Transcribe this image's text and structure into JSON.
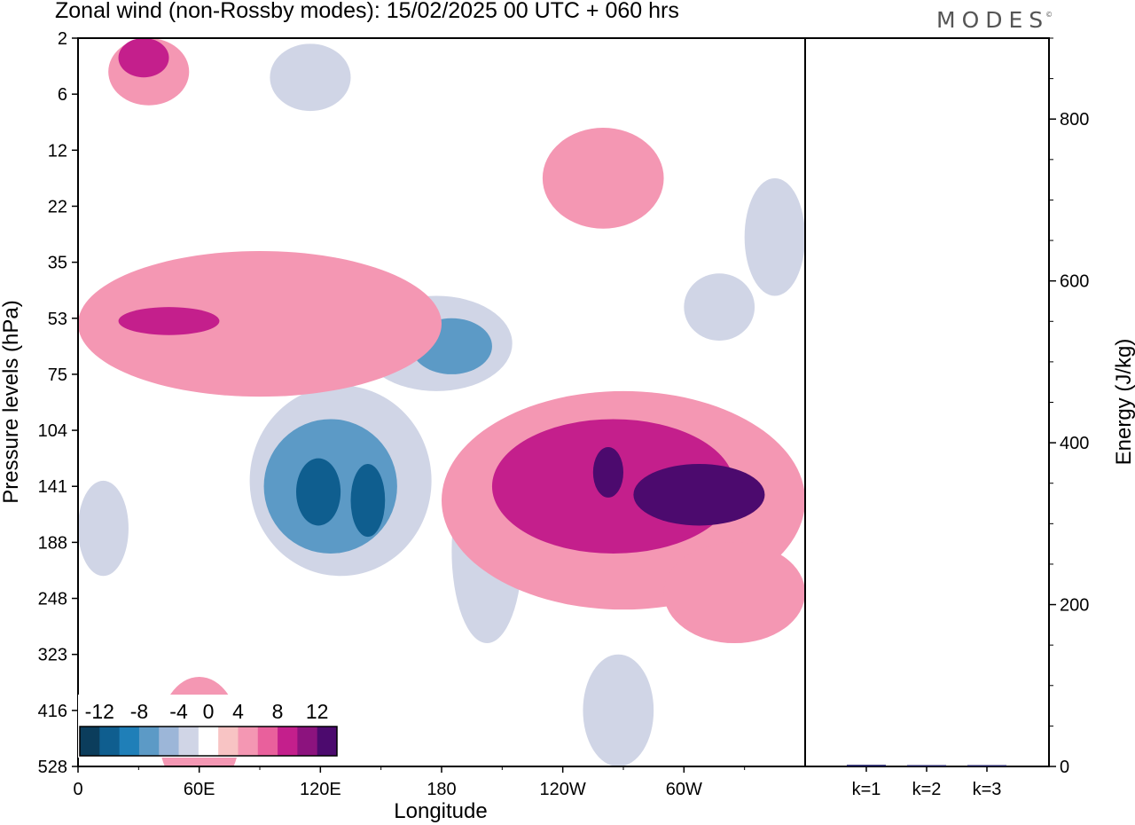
{
  "header": {
    "title": "Zonal wind (non-Rossby modes):  15/02/2025  00 UTC  + 060 hrs",
    "logo": "MODES",
    "logo_mark": "©"
  },
  "chart_data": [
    {
      "type": "heatmap",
      "xlabel": "Longitude",
      "ylabel": "Pressure levels (hPa)",
      "x_ticks": [
        "0",
        "60E",
        "120E",
        "180",
        "120W",
        "60W"
      ],
      "x_tick_values": [
        0,
        60,
        120,
        180,
        240,
        300
      ],
      "xlim": [
        0,
        360
      ],
      "y_ticks": [
        "2",
        "6",
        "12",
        "22",
        "35",
        "53",
        "75",
        "104",
        "141",
        "188",
        "248",
        "323",
        "416",
        "528"
      ],
      "colorbar": {
        "labels": [
          "-12",
          "-8",
          "-4",
          "0",
          "4",
          "8",
          "12"
        ],
        "label_values": [
          -12,
          -8,
          -4,
          0,
          4,
          8,
          12
        ],
        "levels": [
          -14,
          -12,
          -10,
          -8,
          -6,
          -4,
          -2,
          2,
          4,
          6,
          8,
          10,
          12,
          14
        ],
        "colors": [
          "#0b3d5c",
          "#0f5e8f",
          "#1f7fb8",
          "#5c9ac6",
          "#9cb6d8",
          "#d0d5e6",
          "#ffffff",
          "#f8c4c4",
          "#f497b3",
          "#e9609c",
          "#c41f8c",
          "#8c137e",
          "#4c0a6e"
        ]
      },
      "regions": [
        {
          "value": -4,
          "lon": [
            85,
            175
          ],
          "lev_idx": [
            6.2,
            9.6
          ]
        },
        {
          "value": -8,
          "lon": [
            92,
            158
          ],
          "lev_idx": [
            6.8,
            9.2
          ]
        },
        {
          "value": -12,
          "lon": [
            108,
            130
          ],
          "lev_idx": [
            7.5,
            8.7
          ]
        },
        {
          "value": -12,
          "lon": [
            135,
            152
          ],
          "lev_idx": [
            7.6,
            8.9
          ]
        },
        {
          "value": -4,
          "lon": [
            140,
            215
          ],
          "lev_idx": [
            4.6,
            6.3
          ]
        },
        {
          "value": -8,
          "lon": [
            165,
            205
          ],
          "lev_idx": [
            5.0,
            6.0
          ]
        },
        {
          "value": -4,
          "lon": [
            95,
            135
          ],
          "lev_idx": [
            0.1,
            1.3
          ]
        },
        {
          "value": -4,
          "lon": [
            330,
            360
          ],
          "lev_idx": [
            2.5,
            4.6
          ]
        },
        {
          "value": -4,
          "lon": [
            300,
            335
          ],
          "lev_idx": [
            4.2,
            5.4
          ]
        },
        {
          "value": -4,
          "lon": [
            185,
            220
          ],
          "lev_idx": [
            7.5,
            10.8
          ]
        },
        {
          "value": -4,
          "lon": [
            0,
            25
          ],
          "lev_idx": [
            7.9,
            9.6
          ]
        },
        {
          "value": -4,
          "lon": [
            250,
            285
          ],
          "lev_idx": [
            11.0,
            13.0
          ]
        },
        {
          "value": 4,
          "lon": [
            180,
            360
          ],
          "lev_idx": [
            6.3,
            10.2
          ]
        },
        {
          "value": 8,
          "lon": [
            205,
            325
          ],
          "lev_idx": [
            6.8,
            9.2
          ]
        },
        {
          "value": 12,
          "lon": [
            255,
            270
          ],
          "lev_idx": [
            7.3,
            8.2
          ]
        },
        {
          "value": 12,
          "lon": [
            275,
            340
          ],
          "lev_idx": [
            7.6,
            8.7
          ]
        },
        {
          "value": 4,
          "lon": [
            0,
            180
          ],
          "lev_idx": [
            3.8,
            6.4
          ]
        },
        {
          "value": 8,
          "lon": [
            20,
            70
          ],
          "lev_idx": [
            4.8,
            5.3
          ]
        },
        {
          "value": 4,
          "lon": [
            15,
            55
          ],
          "lev_idx": [
            0.0,
            1.2
          ]
        },
        {
          "value": 8,
          "lon": [
            20,
            45
          ],
          "lev_idx": [
            0.0,
            0.7
          ]
        },
        {
          "value": 4,
          "lon": [
            290,
            360
          ],
          "lev_idx": [
            9.0,
            10.8
          ]
        },
        {
          "value": 4,
          "lon": [
            40,
            80
          ],
          "lev_idx": [
            11.4,
            13.5
          ]
        },
        {
          "value": 4,
          "lon": [
            230,
            290
          ],
          "lev_idx": [
            1.6,
            3.4
          ]
        }
      ]
    },
    {
      "type": "bar",
      "categories": [
        "k=1",
        "k=2",
        "k=3"
      ],
      "values": [
        2,
        1,
        1
      ],
      "ylabel": "Energy (J/kg)",
      "ylim": [
        0,
        900
      ],
      "y_ticks": [
        0,
        200,
        400,
        600,
        800
      ],
      "color": "#1a1a5e"
    }
  ]
}
